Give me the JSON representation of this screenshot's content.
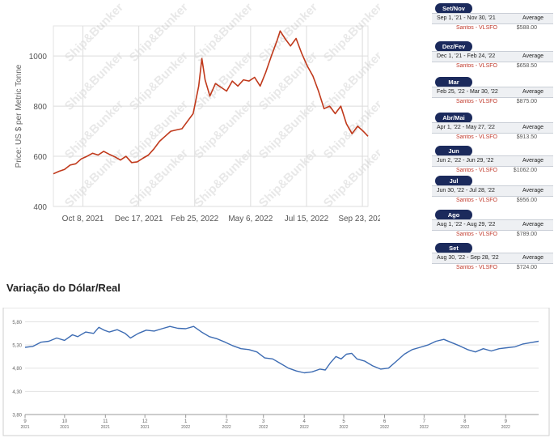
{
  "chart_data": [
    {
      "type": "line",
      "title": "",
      "ylabel": "Price: US $ per Metric Tonne",
      "xlabel": "",
      "watermark": "Ship&Bunker",
      "ylim": [
        400,
        1120
      ],
      "yticks": [
        400,
        600,
        800,
        1000
      ],
      "xlim": [
        "2021-09-01",
        "2022-09-30"
      ],
      "xticks": [
        {
          "date": "2021-10-08",
          "label": "Oct 8, 2021"
        },
        {
          "date": "2021-12-17",
          "label": "Dec 17, 2021"
        },
        {
          "date": "2022-02-25",
          "label": "Feb 25, 2022"
        },
        {
          "date": "2022-05-06",
          "label": "May 6, 2022"
        },
        {
          "date": "2022-07-15",
          "label": "Jul 15, 2022"
        },
        {
          "date": "2022-09-23",
          "label": "Sep 23, 2022"
        }
      ],
      "grid": true,
      "series": [
        {
          "color": "#c0391b",
          "points": [
            [
              "2021-09-01",
              530
            ],
            [
              "2021-09-08",
              540
            ],
            [
              "2021-09-15",
              548
            ],
            [
              "2021-09-22",
              565
            ],
            [
              "2021-09-29",
              570
            ],
            [
              "2021-10-06",
              590
            ],
            [
              "2021-10-13",
              600
            ],
            [
              "2021-10-20",
              612
            ],
            [
              "2021-10-27",
              605
            ],
            [
              "2021-11-03",
              620
            ],
            [
              "2021-11-10",
              608
            ],
            [
              "2021-11-17",
              598
            ],
            [
              "2021-11-24",
              585
            ],
            [
              "2021-12-01",
              600
            ],
            [
              "2021-12-08",
              575
            ],
            [
              "2021-12-15",
              578
            ],
            [
              "2021-12-22",
              592
            ],
            [
              "2021-12-29",
              605
            ],
            [
              "2022-01-05",
              630
            ],
            [
              "2022-01-12",
              660
            ],
            [
              "2022-01-19",
              680
            ],
            [
              "2022-01-26",
              700
            ],
            [
              "2022-02-02",
              705
            ],
            [
              "2022-02-09",
              710
            ],
            [
              "2022-02-16",
              740
            ],
            [
              "2022-02-23",
              770
            ],
            [
              "2022-03-02",
              880
            ],
            [
              "2022-03-06",
              990
            ],
            [
              "2022-03-10",
              905
            ],
            [
              "2022-03-16",
              840
            ],
            [
              "2022-03-23",
              890
            ],
            [
              "2022-03-30",
              875
            ],
            [
              "2022-04-06",
              860
            ],
            [
              "2022-04-13",
              900
            ],
            [
              "2022-04-20",
              880
            ],
            [
              "2022-04-27",
              905
            ],
            [
              "2022-05-04",
              900
            ],
            [
              "2022-05-11",
              915
            ],
            [
              "2022-05-18",
              880
            ],
            [
              "2022-05-25",
              935
            ],
            [
              "2022-06-01",
              1000
            ],
            [
              "2022-06-08",
              1060
            ],
            [
              "2022-06-12",
              1100
            ],
            [
              "2022-06-18",
              1070
            ],
            [
              "2022-06-25",
              1040
            ],
            [
              "2022-07-02",
              1070
            ],
            [
              "2022-07-09",
              1010
            ],
            [
              "2022-07-16",
              960
            ],
            [
              "2022-07-23",
              920
            ],
            [
              "2022-07-30",
              860
            ],
            [
              "2022-08-06",
              790
            ],
            [
              "2022-08-13",
              800
            ],
            [
              "2022-08-20",
              770
            ],
            [
              "2022-08-27",
              800
            ],
            [
              "2022-09-03",
              730
            ],
            [
              "2022-09-10",
              690
            ],
            [
              "2022-09-17",
              720
            ],
            [
              "2022-09-24",
              700
            ],
            [
              "2022-09-30",
              680
            ]
          ]
        }
      ]
    },
    {
      "type": "line",
      "title": "Variação do Dólar/Real",
      "ylim": [
        3.8,
        6.0
      ],
      "yticks": [
        3.8,
        4.3,
        4.8,
        5.3,
        5.8
      ],
      "ytick_labels": [
        "3,80",
        "4,30",
        "4,80",
        "5,30",
        "5,80"
      ],
      "xlim": [
        0,
        390
      ],
      "xticks": [
        {
          "x": 0,
          "label": "9",
          "year": "2021"
        },
        {
          "x": 30,
          "label": "10",
          "year": "2021"
        },
        {
          "x": 61,
          "label": "11",
          "year": "2021"
        },
        {
          "x": 91,
          "label": "12",
          "year": "2021"
        },
        {
          "x": 122,
          "label": "1",
          "year": "2022"
        },
        {
          "x": 153,
          "label": "2",
          "year": "2022"
        },
        {
          "x": 181,
          "label": "3",
          "year": "2022"
        },
        {
          "x": 212,
          "label": "4",
          "year": "2022"
        },
        {
          "x": 242,
          "label": "5",
          "year": "2022"
        },
        {
          "x": 273,
          "label": "6",
          "year": "2022"
        },
        {
          "x": 303,
          "label": "7",
          "year": "2022"
        },
        {
          "x": 334,
          "label": "8",
          "year": "2022"
        },
        {
          "x": 365,
          "label": "9",
          "year": "2022"
        }
      ],
      "grid": true,
      "series": [
        {
          "color": "#3d6cb3",
          "points": [
            [
              0,
              5.25
            ],
            [
              6,
              5.27
            ],
            [
              12,
              5.36
            ],
            [
              18,
              5.38
            ],
            [
              24,
              5.45
            ],
            [
              30,
              5.4
            ],
            [
              36,
              5.52
            ],
            [
              40,
              5.48
            ],
            [
              46,
              5.58
            ],
            [
              52,
              5.55
            ],
            [
              56,
              5.68
            ],
            [
              60,
              5.62
            ],
            [
              64,
              5.58
            ],
            [
              70,
              5.63
            ],
            [
              76,
              5.55
            ],
            [
              80,
              5.45
            ],
            [
              86,
              5.55
            ],
            [
              92,
              5.62
            ],
            [
              98,
              5.6
            ],
            [
              104,
              5.65
            ],
            [
              110,
              5.7
            ],
            [
              116,
              5.66
            ],
            [
              122,
              5.65
            ],
            [
              128,
              5.7
            ],
            [
              134,
              5.58
            ],
            [
              140,
              5.48
            ],
            [
              146,
              5.43
            ],
            [
              152,
              5.36
            ],
            [
              158,
              5.28
            ],
            [
              164,
              5.22
            ],
            [
              170,
              5.2
            ],
            [
              176,
              5.15
            ],
            [
              182,
              5.02
            ],
            [
              188,
              5.0
            ],
            [
              194,
              4.9
            ],
            [
              200,
              4.8
            ],
            [
              206,
              4.74
            ],
            [
              212,
              4.7
            ],
            [
              218,
              4.72
            ],
            [
              224,
              4.78
            ],
            [
              228,
              4.76
            ],
            [
              232,
              4.92
            ],
            [
              236,
              5.05
            ],
            [
              240,
              5.0
            ],
            [
              244,
              5.1
            ],
            [
              248,
              5.12
            ],
            [
              252,
              5.0
            ],
            [
              258,
              4.95
            ],
            [
              264,
              4.85
            ],
            [
              270,
              4.78
            ],
            [
              276,
              4.8
            ],
            [
              282,
              4.95
            ],
            [
              288,
              5.1
            ],
            [
              294,
              5.2
            ],
            [
              300,
              5.25
            ],
            [
              306,
              5.3
            ],
            [
              312,
              5.38
            ],
            [
              318,
              5.42
            ],
            [
              324,
              5.35
            ],
            [
              330,
              5.28
            ],
            [
              336,
              5.2
            ],
            [
              342,
              5.15
            ],
            [
              348,
              5.22
            ],
            [
              354,
              5.17
            ],
            [
              360,
              5.22
            ],
            [
              366,
              5.24
            ],
            [
              372,
              5.26
            ],
            [
              378,
              5.32
            ],
            [
              384,
              5.35
            ],
            [
              390,
              5.38
            ]
          ]
        }
      ]
    }
  ],
  "fx": {
    "title": "Variação do Dólar/Real"
  },
  "price_cards": [
    {
      "badge": "Set/Nov",
      "range": "Sep 1, '21 - Nov 30, '21",
      "avg_label": "Average",
      "port": "Santos - VLSFO",
      "price": "$588.00"
    },
    {
      "badge": "Dez/Fev",
      "range": "Dec 1, '21 - Feb 24, '22",
      "avg_label": "Average",
      "port": "Santos - VLSFO",
      "price": "$658.50"
    },
    {
      "badge": "Mar",
      "range": "Feb 25, '22 - Mar 30, '22",
      "avg_label": "Average",
      "port": "Santos - VLSFO",
      "price": "$875.00"
    },
    {
      "badge": "Abr/Mai",
      "range": "Apr 1, '22 - May 27, '22",
      "avg_label": "Average",
      "port": "Santos - VLSFO",
      "price": "$913.50"
    },
    {
      "badge": "Jun",
      "range": "Jun 2, '22 - Jun 29, '22",
      "avg_label": "Average",
      "port": "Santos - VLSFO",
      "price": "$1062.00"
    },
    {
      "badge": "Jul",
      "range": "Jun 30, '22 - Jul 28, '22",
      "avg_label": "Average",
      "port": "Santos - VLSFO",
      "price": "$956.00"
    },
    {
      "badge": "Ago",
      "range": "Aug 1, '22 - Aug 29, '22",
      "avg_label": "Average",
      "port": "Santos - VLSFO",
      "price": "$789.00"
    },
    {
      "badge": "Set",
      "range": "Aug 30, '22 - Sep 28, '22",
      "avg_label": "Average",
      "port": "Santos - VLSFO",
      "price": "$724.00"
    }
  ]
}
